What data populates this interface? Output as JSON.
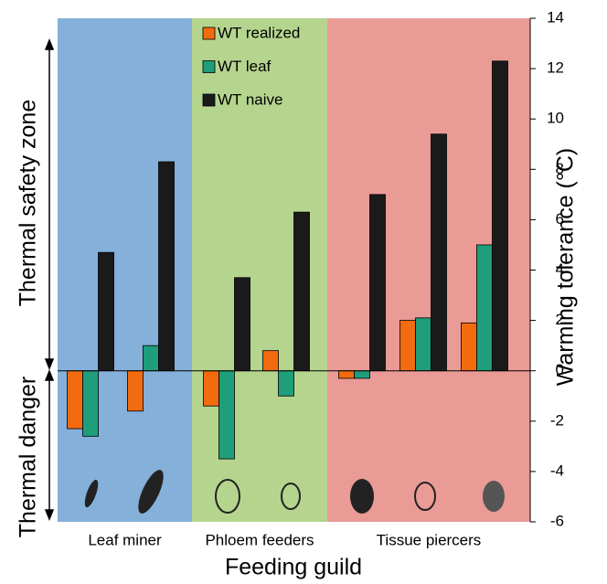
{
  "chart_data": {
    "type": "bar",
    "y_label": "Warming tolerance (°C)",
    "x_label": "Feeding guild",
    "annotations": [
      "Thermal safety zone",
      "Thermal danger"
    ],
    "categories": [
      null,
      null,
      null,
      null,
      null,
      null,
      null
    ],
    "guilds": [
      {
        "name": "Leaf miner",
        "color": "#84b0da",
        "count": 2
      },
      {
        "name": "Phloem feeders",
        "color": "#b5d58f",
        "count": 2
      },
      {
        "name": "Tissue piercers",
        "color": "#ea9b95",
        "count": 3
      }
    ],
    "series": [
      {
        "name": "WT realized",
        "color": "#f26b0f",
        "values": [
          -2.3,
          -1.6,
          -1.4,
          0.8,
          -0.3,
          2.0,
          1.9
        ]
      },
      {
        "name": "WT leaf",
        "color": "#1e9e7a",
        "values": [
          -2.6,
          1.0,
          -3.5,
          -1.0,
          -0.3,
          2.1,
          5.0
        ]
      },
      {
        "name": "WT naive",
        "color": "#1a1a1a",
        "values": [
          4.7,
          8.3,
          3.7,
          6.3,
          7.0,
          9.4,
          12.3
        ]
      }
    ],
    "ylim": [
      -6,
      14
    ],
    "yticks": [
      -6,
      -4,
      -2,
      0,
      2,
      4,
      6,
      8,
      10,
      12,
      14
    ]
  }
}
